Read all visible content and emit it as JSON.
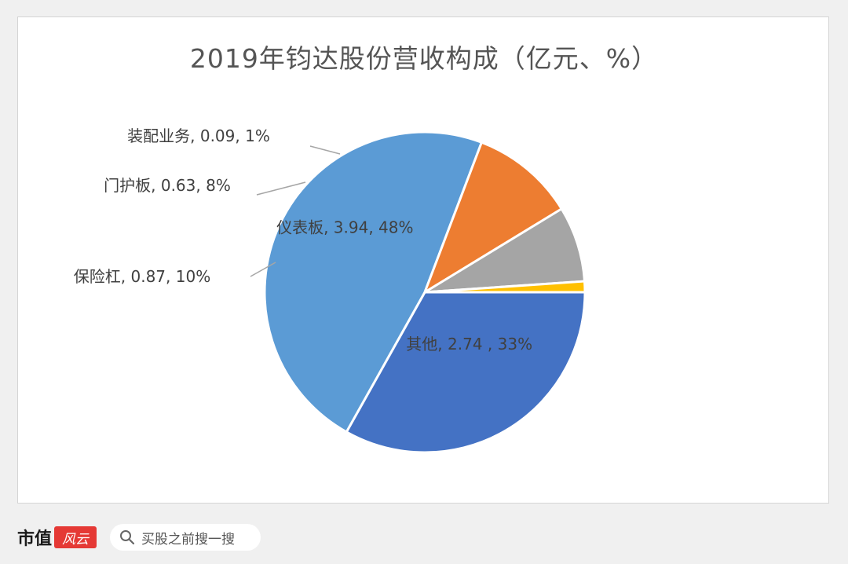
{
  "chart_data": {
    "type": "pie",
    "title": "2019年钧达股份营收构成（亿元、%）",
    "slices": [
      {
        "label": "其他",
        "value": 2.74,
        "percent": "33%",
        "color": "#4472c4",
        "display": "其他, 2.74 , 33%"
      },
      {
        "label": "仪表板",
        "value": 3.94,
        "percent": "48%",
        "color": "#5b9bd5",
        "display": "仪表板, 3.94, 48%"
      },
      {
        "label": "保险杠",
        "value": 0.87,
        "percent": "10%",
        "color": "#ed7d31",
        "display": "保险杠, 0.87, 10%"
      },
      {
        "label": "门护板",
        "value": 0.63,
        "percent": "8%",
        "color": "#a5a5a5",
        "display": "门护板, 0.63, 8%"
      },
      {
        "label": "装配业务",
        "value": 0.09,
        "percent": "1%",
        "color": "#ffc000",
        "display": "装配业务, 0.09, 1%"
      }
    ],
    "start_angle_deg": 0,
    "direction": "clockwise"
  },
  "footer": {
    "brand_text": "市值",
    "brand_seal_text": "风云",
    "search_icon": "search-icon",
    "search_text": "买股之前搜一搜"
  }
}
